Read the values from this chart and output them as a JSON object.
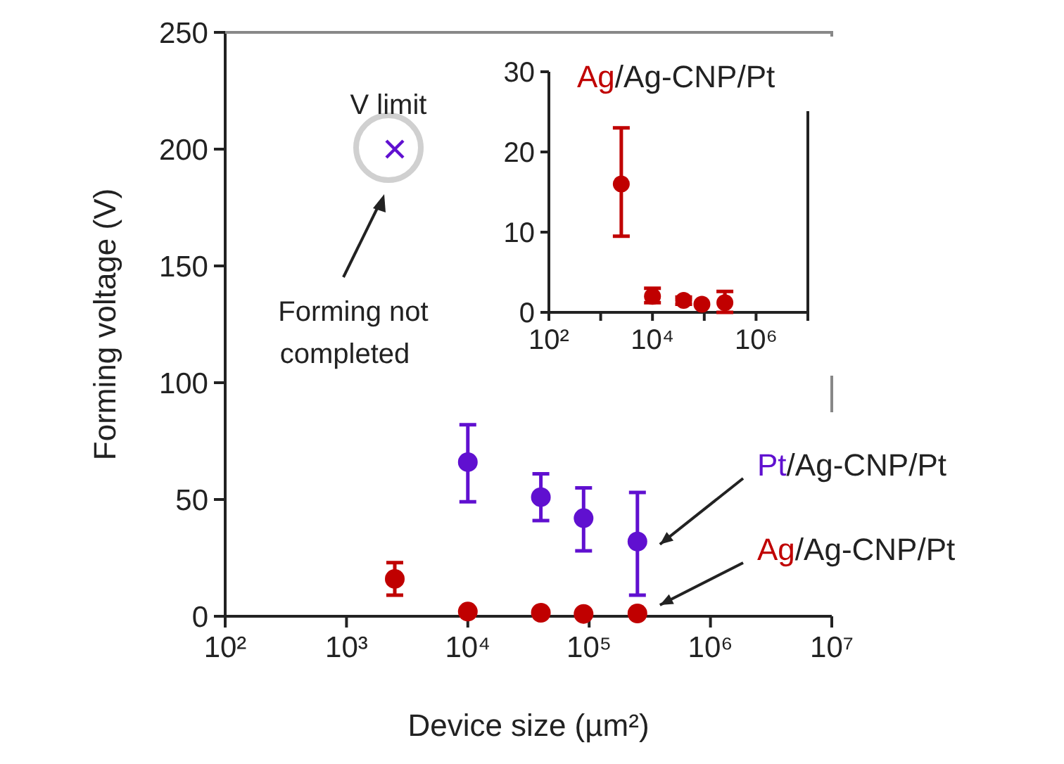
{
  "chart_data": [
    {
      "type": "scatter",
      "xlabel": "Device size (µm²)",
      "ylabel": "Forming voltage (V)",
      "log": "x",
      "grid": false,
      "marker": "circle",
      "xlim": [
        100,
        10000000
      ],
      "xticks": [
        {
          "value": 100,
          "label": "10²"
        },
        {
          "value": 1000,
          "label": "10³"
        },
        {
          "value": 10000,
          "label": "10⁴"
        },
        {
          "value": 100000,
          "label": "10⁵"
        },
        {
          "value": 1000000,
          "label": "10⁶"
        },
        {
          "value": 10000000,
          "label": "10⁷"
        }
      ],
      "ylim": [
        0,
        250
      ],
      "yticks": [
        0,
        50,
        100,
        150,
        200,
        250
      ],
      "series": [
        {
          "name": "Pt/Ag-CNP/Pt",
          "color": "#6010d0",
          "x": [
            10000,
            40000,
            90000,
            250000
          ],
          "values": [
            66,
            51,
            42,
            32
          ],
          "errors": [
            [
              49,
              82
            ],
            [
              41,
              61
            ],
            [
              28,
              55
            ],
            [
              9,
              53
            ]
          ]
        },
        {
          "name": "Ag/Ag-CNP/Pt",
          "color": "#c00000",
          "x": [
            2500,
            10000,
            40000,
            90000,
            250000
          ],
          "values": [
            16,
            2,
            1.5,
            1,
            1.2
          ],
          "errors": [
            [
              9,
              23
            ],
            null,
            null,
            null,
            null
          ]
        },
        {
          "color": "#6010d0",
          "marker": "cross",
          "x": [
            2500
          ],
          "values": [
            200
          ]
        }
      ],
      "annotations": [
        "V limit",
        "Forming not completed"
      ]
    },
    {
      "type": "scatter",
      "log": "x",
      "grid": false,
      "marker": "circle",
      "xlim": [
        100,
        10000000
      ],
      "xticks": [
        {
          "value": 100,
          "label": "10²"
        },
        {
          "value": 1000,
          "label": null
        },
        {
          "value": 10000,
          "label": "10⁴"
        },
        {
          "value": 100000,
          "label": null
        },
        {
          "value": 1000000,
          "label": "10⁶"
        },
        {
          "value": 10000000,
          "label": null
        }
      ],
      "ylim": [
        0,
        30
      ],
      "yticks": [
        0,
        10,
        20,
        30
      ],
      "series": [
        {
          "name": "Ag/Ag-CNP/Pt",
          "color": "#c00000",
          "x": [
            2500,
            10000,
            40000,
            90000,
            250000
          ],
          "values": [
            16,
            2,
            1.5,
            1,
            1.2
          ],
          "errors": [
            [
              9.5,
              23
            ],
            [
              1.2,
              3
            ],
            [
              1,
              1.9
            ],
            null,
            [
              0,
              2.6
            ]
          ]
        }
      ]
    }
  ]
}
